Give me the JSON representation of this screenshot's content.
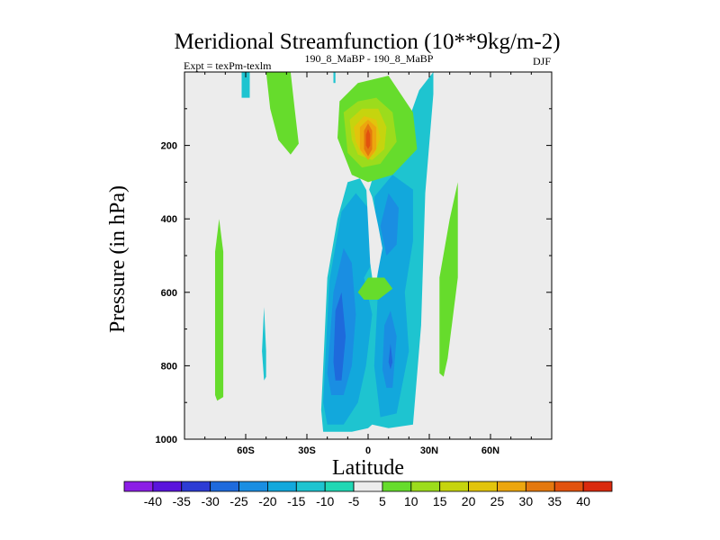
{
  "chart_data": {
    "type": "contour",
    "title": "Meridional Streamfunction (10**9kg/m-2)",
    "subtitle_left": "Expt = texPm-texlm",
    "subtitle_center": "190_8_MaBP - 190_8_MaBP",
    "subtitle_right": "DJF",
    "xlabel": "Latitude",
    "ylabel": "Pressure (in hPa)",
    "xlim": [
      -90,
      90
    ],
    "ylim": [
      0,
      1000
    ],
    "y_reversed": true,
    "x_ticks": [
      {
        "value": -60,
        "label": "60S"
      },
      {
        "value": -30,
        "label": "30S"
      },
      {
        "value": 0,
        "label": "0"
      },
      {
        "value": 30,
        "label": "30N"
      },
      {
        "value": 60,
        "label": "60N"
      }
    ],
    "y_ticks": [
      {
        "value": 200,
        "label": "200"
      },
      {
        "value": 400,
        "label": "400"
      },
      {
        "value": 600,
        "label": "600"
      },
      {
        "value": 800,
        "label": "800"
      },
      {
        "value": 1000,
        "label": "1000"
      }
    ],
    "colorbar": {
      "labels": [
        "-40",
        "-35",
        "-30",
        "-25",
        "-20",
        "-15",
        "-10",
        "-5",
        "5",
        "10",
        "15",
        "20",
        "25",
        "30",
        "35",
        "40"
      ],
      "colors": [
        "#8c1ee6",
        "#5a14dc",
        "#2c3cd4",
        "#1e6adc",
        "#1a8ee2",
        "#12a8dc",
        "#1ec4d0",
        "#20d8b4",
        "#ececec",
        "#66dc2c",
        "#9cdc1c",
        "#c6d40e",
        "#e2c40c",
        "#eca60e",
        "#e4780e",
        "#e2520e",
        "#da2a0e"
      ]
    },
    "background_color": "#ececec",
    "regions": [
      {
        "name": "sh-upper-thin-cell",
        "level": 10,
        "color": "#66dc2c",
        "points": [
          [
            -50,
            0
          ],
          [
            -38,
            0
          ],
          [
            -36,
            100
          ],
          [
            -34,
            195
          ],
          [
            -38,
            225
          ],
          [
            -44,
            185
          ],
          [
            -48,
            100
          ]
        ]
      },
      {
        "name": "sh-upper-cyan-strip",
        "level": -10,
        "color": "#1ec4d0",
        "points": [
          [
            -62,
            0
          ],
          [
            -58,
            0
          ],
          [
            -58,
            70
          ],
          [
            -62,
            70
          ]
        ]
      },
      {
        "name": "narrow-upper-cyan",
        "level": -10,
        "color": "#1ec4d0",
        "points": [
          [
            -17,
            0
          ],
          [
            -16,
            0
          ],
          [
            -16,
            30
          ],
          [
            -17,
            30
          ]
        ]
      },
      {
        "name": "sh-green-strip",
        "level": 10,
        "color": "#66dc2c",
        "points": [
          [
            -75,
            490
          ],
          [
            -73,
            400
          ],
          [
            -71,
            490
          ],
          [
            -71,
            885
          ],
          [
            -74,
            895
          ],
          [
            -75,
            880
          ]
        ]
      },
      {
        "name": "sh-cyan-small",
        "level": -10,
        "color": "#1ec4d0",
        "points": [
          [
            -52,
            760
          ],
          [
            -51,
            640
          ],
          [
            -50,
            760
          ],
          [
            -50,
            830
          ],
          [
            -51,
            840
          ]
        ]
      },
      {
        "name": "nh-green-strip",
        "level": 10,
        "color": "#66dc2c",
        "points": [
          [
            35,
            560
          ],
          [
            40,
            400
          ],
          [
            44,
            300
          ],
          [
            44,
            560
          ],
          [
            39,
            780
          ],
          [
            37,
            830
          ],
          [
            35,
            820
          ]
        ]
      },
      {
        "name": "main-neg-outer",
        "level": -10,
        "color": "#1ec4d0",
        "points": [
          [
            -23,
            920
          ],
          [
            -20,
            560
          ],
          [
            -15,
            400
          ],
          [
            -10,
            300
          ],
          [
            -4,
            290
          ],
          [
            0,
            330
          ],
          [
            6,
            220
          ],
          [
            16,
            190
          ],
          [
            25,
            50
          ],
          [
            32,
            0
          ],
          [
            32,
            60
          ],
          [
            28,
            330
          ],
          [
            26,
            690
          ],
          [
            22,
            960
          ],
          [
            10,
            970
          ],
          [
            2,
            960
          ],
          [
            0,
            970
          ],
          [
            -8,
            980
          ],
          [
            -22,
            980
          ]
        ]
      },
      {
        "name": "main-neg-inner-1",
        "level": -15,
        "color": "#12a8dc",
        "points": [
          [
            -22,
            900
          ],
          [
            -19,
            570
          ],
          [
            -13,
            380
          ],
          [
            -6,
            330
          ],
          [
            0,
            370
          ],
          [
            4,
            500
          ],
          [
            -2,
            560
          ],
          [
            2,
            660
          ],
          [
            -1,
            800
          ],
          [
            -5,
            900
          ],
          [
            -12,
            960
          ],
          [
            -20,
            960
          ]
        ]
      },
      {
        "name": "main-neg-inner-nh",
        "level": -15,
        "color": "#12a8dc",
        "points": [
          [
            3,
            340
          ],
          [
            12,
            280
          ],
          [
            22,
            320
          ],
          [
            22,
            460
          ],
          [
            18,
            600
          ],
          [
            20,
            760
          ],
          [
            14,
            930
          ],
          [
            6,
            940
          ],
          [
            3,
            800
          ],
          [
            5,
            580
          ],
          [
            4,
            420
          ]
        ]
      },
      {
        "name": "main-neg-inner-2",
        "level": -20,
        "color": "#1a8ee2",
        "points": [
          [
            -20,
            820
          ],
          [
            -17,
            600
          ],
          [
            -12,
            480
          ],
          [
            -8,
            520
          ],
          [
            -6,
            660
          ],
          [
            -8,
            800
          ],
          [
            -12,
            880
          ],
          [
            -18,
            880
          ]
        ]
      },
      {
        "name": "main-neg-inner-nh-2",
        "level": -20,
        "color": "#1a8ee2",
        "points": [
          [
            6,
            420
          ],
          [
            10,
            330
          ],
          [
            15,
            370
          ],
          [
            14,
            470
          ],
          [
            9,
            500
          ]
        ]
      },
      {
        "name": "main-neg-inner-3",
        "level": -25,
        "color": "#1e6adc",
        "points": [
          [
            -17,
            790
          ],
          [
            -16,
            650
          ],
          [
            -13,
            600
          ],
          [
            -11,
            720
          ],
          [
            -13,
            840
          ],
          [
            -16,
            840
          ]
        ]
      },
      {
        "name": "main-neg-inner-nh-3",
        "level": -20,
        "color": "#1a8ee2",
        "points": [
          [
            7,
            810
          ],
          [
            8,
            690
          ],
          [
            11,
            650
          ],
          [
            14,
            720
          ],
          [
            12,
            860
          ],
          [
            9,
            860
          ]
        ]
      },
      {
        "name": "main-neg-inner-nh-4",
        "level": -25,
        "color": "#1e6adc",
        "points": [
          [
            10,
            790
          ],
          [
            11,
            740
          ],
          [
            12,
            790
          ],
          [
            11,
            810
          ]
        ]
      },
      {
        "name": "pos-blob-5",
        "level": 5,
        "color": "#ececec",
        "points": [
          [
            -1,
            300
          ],
          [
            1,
            520
          ],
          [
            3,
            600
          ],
          [
            5,
            540
          ],
          [
            7,
            480
          ],
          [
            5,
            420
          ],
          [
            2,
            340
          ]
        ]
      },
      {
        "name": "pos-blob-10-mid",
        "level": 10,
        "color": "#66dc2c",
        "points": [
          [
            -5,
            600
          ],
          [
            0,
            560
          ],
          [
            8,
            560
          ],
          [
            12,
            590
          ],
          [
            5,
            620
          ],
          [
            -2,
            620
          ]
        ]
      },
      {
        "name": "pos-cell-10",
        "level": 10,
        "color": "#66dc2c",
        "points": [
          [
            -14,
            80
          ],
          [
            -5,
            30
          ],
          [
            10,
            10
          ],
          [
            22,
            110
          ],
          [
            24,
            210
          ],
          [
            12,
            280
          ],
          [
            0,
            300
          ],
          [
            -8,
            280
          ],
          [
            -15,
            180
          ]
        ]
      },
      {
        "name": "pos-cell-15",
        "level": 15,
        "color": "#9cdc1c",
        "points": [
          [
            -12,
            110
          ],
          [
            -5,
            80
          ],
          [
            4,
            70
          ],
          [
            12,
            110
          ],
          [
            14,
            190
          ],
          [
            6,
            250
          ],
          [
            -3,
            260
          ],
          [
            -10,
            220
          ]
        ]
      },
      {
        "name": "pos-cell-20",
        "level": 20,
        "color": "#c6d40e",
        "points": [
          [
            -9,
            130
          ],
          [
            -3,
            100
          ],
          [
            5,
            100
          ],
          [
            9,
            150
          ],
          [
            8,
            210
          ],
          [
            2,
            240
          ],
          [
            -5,
            225
          ],
          [
            -8,
            185
          ]
        ]
      },
      {
        "name": "pos-cell-25",
        "level": 25,
        "color": "#e2c40c",
        "points": [
          [
            -7,
            150
          ],
          [
            -2,
            120
          ],
          [
            4,
            130
          ],
          [
            6,
            180
          ],
          [
            3,
            225
          ],
          [
            -3,
            225
          ],
          [
            -6,
            190
          ]
        ]
      },
      {
        "name": "pos-cell-30",
        "level": 30,
        "color": "#eca60e",
        "points": [
          [
            -4,
            150
          ],
          [
            0,
            130
          ],
          [
            4,
            150
          ],
          [
            4,
            210
          ],
          [
            0,
            240
          ],
          [
            -4,
            210
          ]
        ]
      },
      {
        "name": "pos-cell-35",
        "level": 35,
        "color": "#e4780e",
        "points": [
          [
            -2,
            160
          ],
          [
            0,
            140
          ],
          [
            2,
            160
          ],
          [
            2,
            210
          ],
          [
            0,
            230
          ],
          [
            -2,
            210
          ]
        ]
      },
      {
        "name": "pos-cell-40",
        "level": 40,
        "color": "#e2520e",
        "points": [
          [
            -1,
            170
          ],
          [
            0,
            155
          ],
          [
            1,
            170
          ],
          [
            1,
            200
          ],
          [
            0,
            210
          ],
          [
            -1,
            200
          ]
        ]
      }
    ]
  }
}
